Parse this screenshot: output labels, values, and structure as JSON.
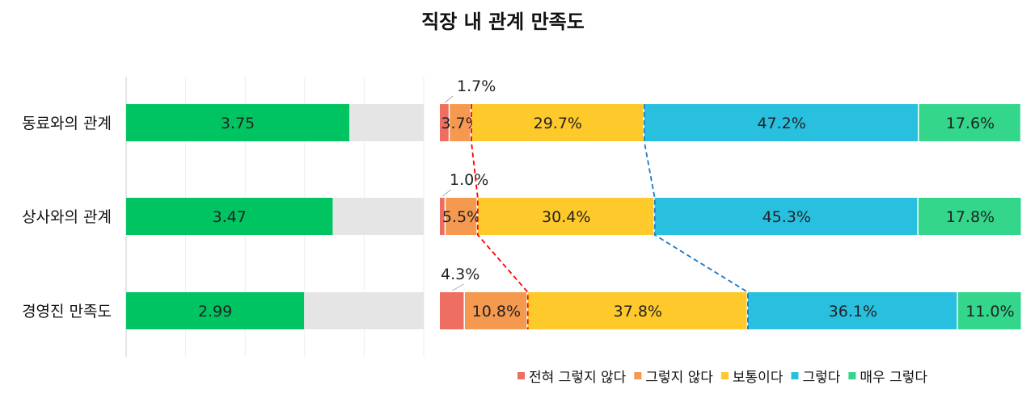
{
  "chart_data": [
    {
      "type": "bar",
      "orientation": "horizontal",
      "title": "직장 내 관계 만족도",
      "categories": [
        "동료와의 관계",
        "상사와의 관계",
        "경영진 만족도"
      ],
      "values": [
        3.75,
        3.47,
        2.99
      ],
      "value_labels": [
        "3.75",
        "3.47",
        "2.99"
      ],
      "xlim": [
        0,
        5
      ],
      "grid": true,
      "colors": {
        "bar": "#00C462",
        "background": "#E5E5E5"
      }
    },
    {
      "type": "bar",
      "orientation": "horizontal",
      "stacked": "percent",
      "categories": [
        "동료와의 관계",
        "상사와의 관계",
        "경영진 만족도"
      ],
      "series": [
        {
          "name": "전혀 그렇지 않다",
          "color": "#EE6F61",
          "values": [
            1.7,
            1.0,
            4.3
          ],
          "labels": [
            "1.7%",
            "1.0%",
            "4.3%"
          ]
        },
        {
          "name": "그렇지 않다",
          "color": "#F4994F",
          "values": [
            3.7,
            5.5,
            10.8
          ],
          "labels": [
            "3.7%",
            "5.5%",
            "10.8%"
          ]
        },
        {
          "name": "보통이다",
          "color": "#FDC92B",
          "values": [
            29.7,
            30.4,
            37.8
          ],
          "labels": [
            "29.7%",
            "30.4%",
            "37.8%"
          ]
        },
        {
          "name": "그렇다",
          "color": "#29C0E0",
          "values": [
            47.2,
            45.3,
            36.1
          ],
          "labels": [
            "47.2%",
            "45.3%",
            "36.1%"
          ]
        },
        {
          "name": "매우 그렇다",
          "color": "#33D68A",
          "values": [
            17.6,
            17.8,
            11.0
          ],
          "labels": [
            "17.6%",
            "17.8%",
            "11.0%"
          ]
        }
      ],
      "xlim": [
        0,
        100
      ],
      "legend": "bottom-right",
      "connector_lines": [
        {
          "after_series": 1,
          "color": "#FF0000"
        },
        {
          "after_series": 2,
          "color": "#1F78C8"
        }
      ]
    }
  ]
}
